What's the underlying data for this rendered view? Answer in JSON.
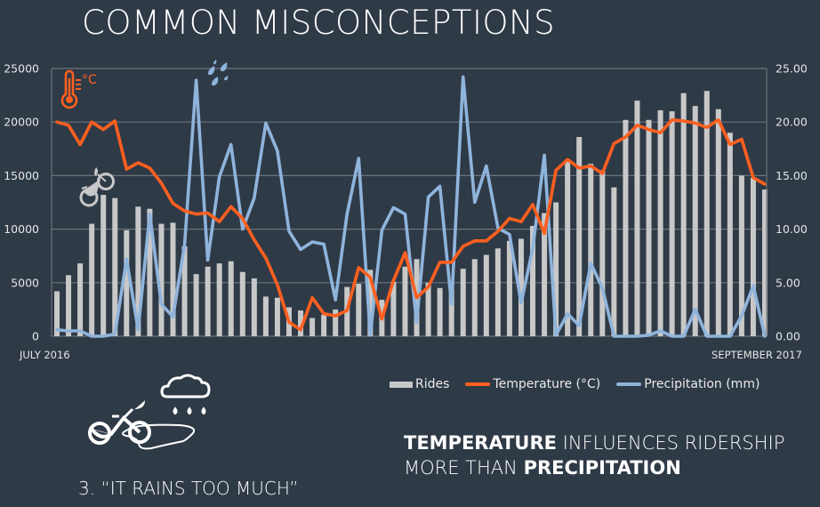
{
  "slide": {
    "title": "COMMON MISCONCEPTIONS",
    "caption": "3. “IT RAINS TOO MUCH”",
    "takeaway": {
      "line1_bold": "TEMPERATURE",
      "line1_rest": " INFLUENCES RIDERSHIP",
      "line2_rest": "MORE THAN ",
      "line2_bold": "PRECIPITATION"
    },
    "icons": {
      "thermometer": "thermometer-icon",
      "celsius_label": "°C",
      "raindrops": "raindrops-icon",
      "bike": "bike-icon",
      "rain_bike_puddle": "bike-in-rain-icon"
    }
  },
  "colors": {
    "background": "#2f3a47",
    "rides": "#c8c8c8",
    "temperature": "#ff5f1f",
    "precipitation": "#8fb4dc",
    "grid": "#6b737c"
  },
  "chart_data": {
    "type": "bar+line",
    "title": "",
    "x_start_label": "JULY 2016",
    "x_end_label": "SEPTEMBER 2017",
    "left_axis": {
      "min": 0,
      "max": 25000,
      "ticks": [
        "0",
        "5000",
        "10000",
        "15000",
        "20000",
        "25000"
      ]
    },
    "right_axis": {
      "min": 0,
      "max": 25,
      "ticks": [
        "0.00",
        "5.00",
        "10.00",
        "15.00",
        "20.00",
        "25.00"
      ]
    },
    "grid": true,
    "legend_position": "bottom",
    "legend": [
      "Rides",
      "Temperature (°C)",
      "Precipitation (mm)"
    ],
    "series": [
      {
        "name": "Rides",
        "type": "bar",
        "axis": "left",
        "values": [
          4200,
          5700,
          6800,
          10500,
          13200,
          12900,
          9900,
          12100,
          11900,
          10500,
          10600,
          8400,
          5800,
          6500,
          6800,
          7000,
          6000,
          5400,
          3700,
          3600,
          2700,
          2400,
          1700,
          2000,
          2500,
          4600,
          4900,
          6200,
          3400,
          5100,
          6500,
          7200,
          5000,
          4500,
          5000,
          6300,
          7200,
          7600,
          8200,
          8900,
          9100,
          10300,
          11500,
          12500,
          16400,
          18600,
          16100,
          15500,
          13900,
          20200,
          22000,
          20200,
          21100,
          21000,
          22700,
          21500,
          22900,
          21200,
          19000,
          15000,
          14800,
          13700
        ]
      },
      {
        "name": "Temperature (°C)",
        "type": "line",
        "axis": "right",
        "values": [
          20.0,
          19.7,
          17.9,
          20.0,
          19.3,
          20.1,
          15.6,
          16.2,
          15.7,
          14.3,
          12.4,
          11.7,
          11.4,
          11.5,
          10.7,
          12.1,
          11.0,
          9.0,
          7.3,
          4.8,
          1.3,
          0.6,
          3.6,
          2.1,
          1.9,
          2.4,
          6.4,
          5.5,
          1.6,
          5.2,
          7.8,
          3.6,
          4.6,
          6.9,
          6.9,
          8.4,
          8.9,
          8.9,
          9.8,
          11.0,
          10.7,
          12.3,
          9.6,
          15.5,
          16.5,
          15.7,
          15.9,
          15.2,
          18.0,
          18.6,
          19.7,
          19.3,
          19.0,
          20.2,
          20.1,
          19.9,
          19.5,
          20.2,
          17.9,
          18.4,
          14.8,
          14.2
        ]
      },
      {
        "name": "Precipitation (mm)",
        "type": "line",
        "axis": "right",
        "values": [
          0.6,
          0.5,
          0.5,
          0.0,
          0.0,
          0.2,
          7.2,
          0.6,
          11.4,
          3.0,
          1.8,
          8.5,
          23.9,
          7.1,
          14.9,
          17.9,
          10.0,
          12.9,
          19.9,
          17.3,
          9.8,
          8.1,
          8.8,
          8.6,
          3.4,
          11.4,
          16.6,
          0.1,
          9.9,
          12.0,
          11.4,
          1.3,
          13.0,
          14.0,
          3.0,
          24.2,
          12.5,
          15.9,
          10.1,
          9.5,
          3.1,
          8.2,
          16.9,
          0.1,
          2.1,
          1.0,
          6.8,
          4.5,
          0.0,
          0.0,
          0.0,
          0.1,
          0.5,
          0.0,
          0.0,
          2.5,
          0.0,
          0.0,
          0.0,
          1.9,
          4.7,
          0.0
        ]
      }
    ]
  }
}
